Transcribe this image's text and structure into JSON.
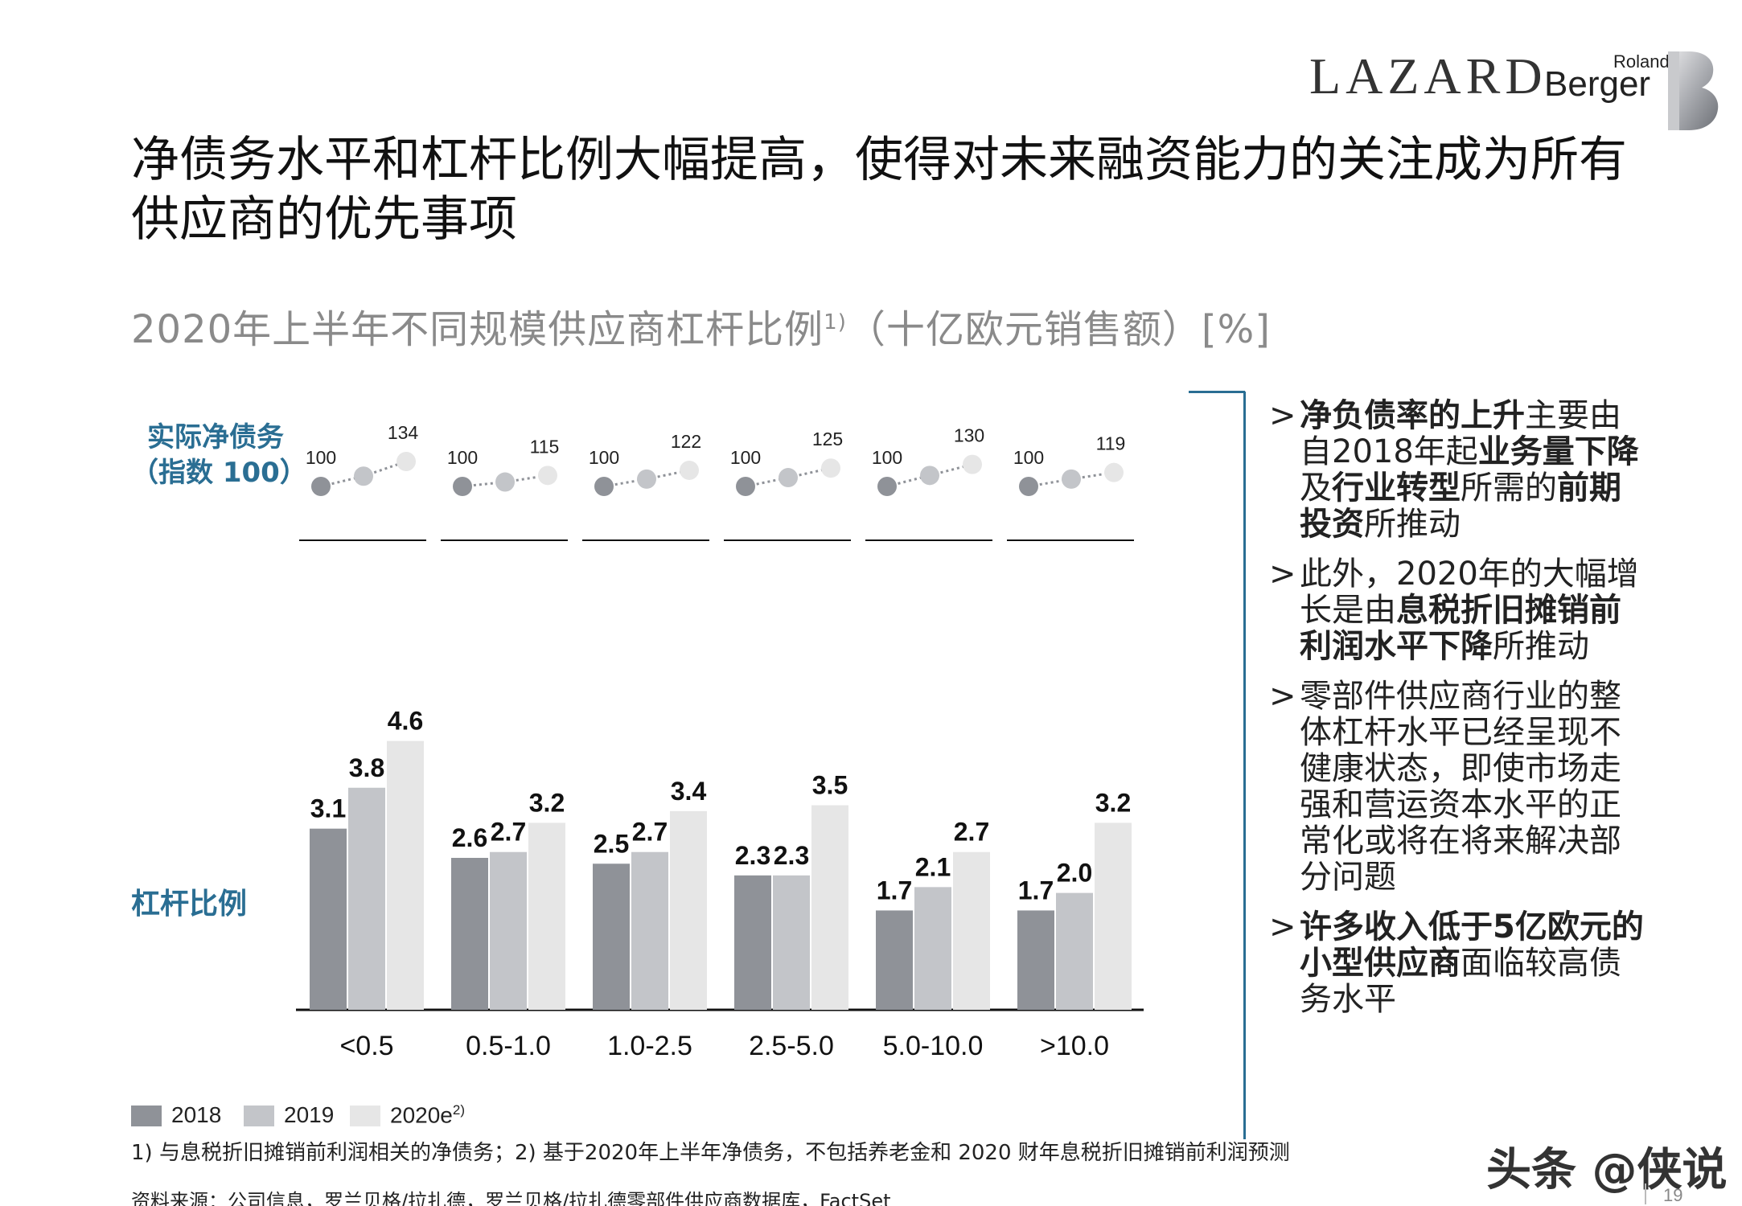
{
  "header": {
    "logo_lazard": "LAZARD",
    "logo_roland": "Roland",
    "logo_berger": "Berger"
  },
  "title": "净债务水平和杠杆比例大幅提高，使得对未来融资能力的关注成为所有供应商的优先事项",
  "subtitle": {
    "text": "2020年上半年不同规模供应商杠杆比例",
    "sup": "1)",
    "suffix": "（十亿欧元销售额）[%]"
  },
  "labels": {
    "net_debt_line1": "实际净债务",
    "net_debt_line2": "（指数 100）",
    "leverage": "杠杆比例"
  },
  "colors": {
    "s2018": "#8f9298",
    "s2019": "#c3c5c9",
    "s2020": "#e6e6e6",
    "accent": "#2a6e93"
  },
  "chart_data": {
    "type": "bar",
    "categories": [
      "<0.5",
      "0.5-1.0",
      "1.0-2.5",
      "2.5-5.0",
      "5.0-10.0",
      ">10.0"
    ],
    "series": [
      {
        "name": "2018",
        "values": [
          3.1,
          2.6,
          2.5,
          2.3,
          1.7,
          1.7
        ]
      },
      {
        "name": "2019",
        "values": [
          3.8,
          2.7,
          2.7,
          2.3,
          2.1,
          2.0
        ]
      },
      {
        "name": "2020e",
        "values": [
          4.6,
          3.2,
          3.4,
          3.5,
          2.7,
          3.2
        ]
      }
    ],
    "value_labels": {
      "2018": [
        "3.1",
        "2.6",
        "2.5",
        "2.3",
        "1.7",
        "1.7"
      ],
      "2019": [
        "3.8",
        "2.7",
        "2.7",
        "2.3",
        "2.1",
        "2.0"
      ],
      "2020e": [
        "4.6",
        "3.2",
        "3.4",
        "3.5",
        "2.7",
        "3.2"
      ]
    },
    "ylim": [
      0,
      5.2
    ],
    "index_series": {
      "type": "line",
      "x": [
        "2018",
        "2019",
        "2020e"
      ],
      "values": [
        {
          "start": 100,
          "mid": 114,
          "end": 134,
          "start_label": "100",
          "end_label": "134"
        },
        {
          "start": 100,
          "mid": 106,
          "end": 115,
          "start_label": "100",
          "end_label": "115"
        },
        {
          "start": 100,
          "mid": 110,
          "end": 122,
          "start_label": "100",
          "end_label": "122"
        },
        {
          "start": 100,
          "mid": 112,
          "end": 125,
          "start_label": "100",
          "end_label": "125"
        },
        {
          "start": 100,
          "mid": 115,
          "end": 130,
          "start_label": "100",
          "end_label": "130"
        },
        {
          "start": 100,
          "mid": 110,
          "end": 119,
          "start_label": "100",
          "end_label": "119"
        }
      ],
      "ylim": [
        100,
        134
      ]
    },
    "legend": {
      "items": [
        {
          "label": "2018",
          "sup": ""
        },
        {
          "label": "2019",
          "sup": ""
        },
        {
          "label": "2020e",
          "sup": "2)"
        }
      ],
      "placement": "bottom-left"
    },
    "grid": false
  },
  "bullets": [
    {
      "parts": [
        [
          "b",
          "净负债率的上升"
        ],
        [
          "n",
          "主要由自2018年起"
        ],
        [
          "b",
          "业务量下降"
        ],
        [
          "n",
          "及"
        ],
        [
          "b",
          "行业转型"
        ],
        [
          "n",
          "所需的"
        ],
        [
          "b",
          "前期投资"
        ],
        [
          "n",
          "所推动"
        ]
      ]
    },
    {
      "parts": [
        [
          "n",
          "此外，2020年的大幅增长是由"
        ],
        [
          "b",
          "息税折旧摊销前利润水平下降"
        ],
        [
          "n",
          "所推动"
        ]
      ]
    },
    {
      "parts": [
        [
          "n",
          "零部件供应商行业的整体杠杆水平已经呈现不健康状态，即使市场走强和营运资本水平的正常化或将在将来解决部分问题"
        ]
      ]
    },
    {
      "parts": [
        [
          "b",
          "许多收入低于5亿欧元的小型供应商"
        ],
        [
          "n",
          "面临较高债务水平"
        ]
      ]
    }
  ],
  "bullet_marker": ">",
  "footnote": "1) 与息税折旧摊销前利润相关的净债务；2) 基于2020年上半年净债务，不包括养老金和 2020 财年息税折旧摊销前利润预测",
  "source": "资料来源：公司信息，罗兰贝格/拉扎德，罗兰贝格/拉扎德零部件供应商数据库，FactSet",
  "watermark": "头条 @侠说",
  "page_number": "19"
}
